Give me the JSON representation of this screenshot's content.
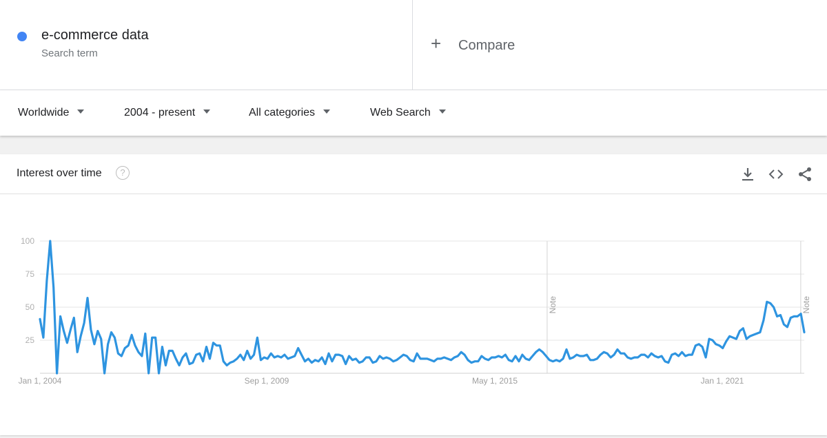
{
  "search_term": {
    "name": "e-commerce data",
    "subtitle": "Search term",
    "color": "#4285f4"
  },
  "compare": {
    "label": "Compare",
    "icon": "plus-icon"
  },
  "filters": [
    {
      "label": "Worldwide"
    },
    {
      "label": "2004 - present"
    },
    {
      "label": "All categories"
    },
    {
      "label": "Web Search"
    }
  ],
  "card": {
    "title": "Interest over time",
    "help_icon": "question-mark-icon",
    "tools": [
      "download-icon",
      "embed-code-icon",
      "share-icon"
    ]
  },
  "chart_data": {
    "type": "line",
    "title": "Interest over time",
    "x_start": "2004-01",
    "x_end": "2022-02",
    "x_tick_labels": [
      "Jan 1, 2004",
      "Sep 1, 2009",
      "May 1, 2015",
      "Jan 1, 2021"
    ],
    "y_ticks": [
      25,
      50,
      75,
      100
    ],
    "ylim": [
      0,
      100
    ],
    "grid": true,
    "line_color": "#2e94e0",
    "notes": [
      {
        "label": "Note",
        "date": "2016-01"
      },
      {
        "label": "Note",
        "date": "2022-01"
      }
    ],
    "series": [
      {
        "values": [
          41,
          27,
          70,
          100,
          65,
          0,
          43,
          32,
          23,
          33,
          42,
          16,
          28,
          38,
          57,
          33,
          22,
          32,
          26,
          0,
          22,
          31,
          27,
          15,
          13,
          19,
          21,
          29,
          21,
          16,
          13,
          30,
          0,
          27,
          27,
          0,
          20,
          6,
          17,
          17,
          11,
          6,
          12,
          15,
          7,
          8,
          14,
          15,
          9,
          20,
          11,
          23,
          21,
          21,
          9,
          6,
          8,
          9,
          11,
          14,
          10,
          17,
          11,
          14,
          27,
          10,
          12,
          11,
          15,
          12,
          13,
          12,
          14,
          11,
          12,
          13,
          19,
          14,
          9,
          11,
          8,
          10,
          9,
          12,
          7,
          15,
          9,
          14,
          14,
          13,
          7,
          13,
          10,
          11,
          8,
          9,
          12,
          12,
          8,
          9,
          13,
          11,
          12,
          11,
          9,
          10,
          12,
          14,
          13,
          10,
          9,
          15,
          11,
          11,
          11,
          10,
          9,
          11,
          11,
          12,
          11,
          10,
          12,
          13,
          16,
          14,
          10,
          8,
          9,
          9,
          13,
          11,
          10,
          12,
          12,
          13,
          12,
          14,
          10,
          9,
          13,
          9,
          14,
          11,
          10,
          13,
          16,
          18,
          16,
          13,
          10,
          9,
          10,
          9,
          11,
          18,
          11,
          12,
          14,
          13,
          13,
          14,
          10,
          10,
          11,
          14,
          16,
          15,
          12,
          14,
          18,
          15,
          15,
          12,
          11,
          12,
          12,
          14,
          14,
          12,
          15,
          13,
          12,
          13,
          9,
          8,
          14,
          15,
          13,
          16,
          13,
          14,
          14,
          21,
          22,
          20,
          12,
          26,
          25,
          22,
          21,
          19,
          24,
          28,
          27,
          26,
          32,
          34,
          26,
          28,
          29,
          30,
          31,
          40,
          54,
          53,
          50,
          43,
          44,
          37,
          35,
          42,
          43,
          43,
          45,
          31
        ]
      }
    ]
  }
}
